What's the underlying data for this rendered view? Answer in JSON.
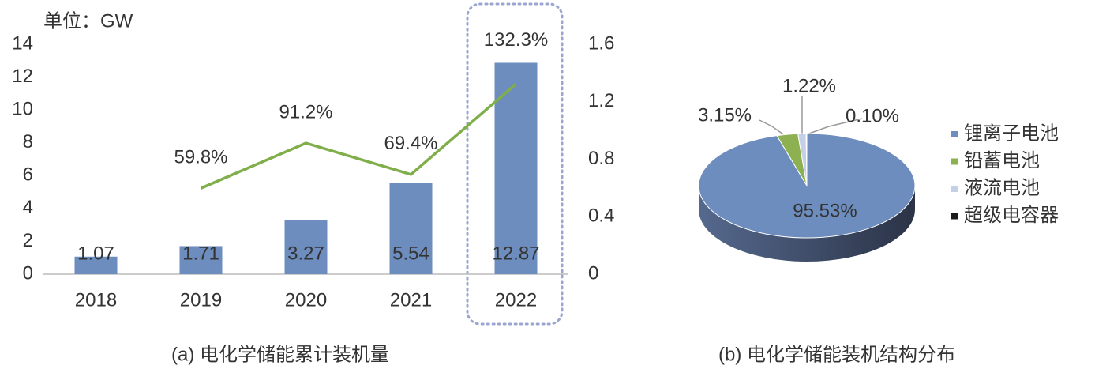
{
  "chart_data": [
    {
      "type": "bar",
      "unit_label": "单位：GW",
      "caption": "(a) 电化学储能累计装机量",
      "categories": [
        "2018",
        "2019",
        "2020",
        "2021",
        "2022"
      ],
      "series": [
        {
          "type": "bar",
          "color": "#6d8dbf",
          "values": [
            1.07,
            1.71,
            3.27,
            5.54,
            12.87
          ]
        },
        {
          "type": "line",
          "axis": "y2",
          "color": "#7fae4a",
          "values": [
            null,
            0.598,
            0.912,
            0.694,
            1.323
          ],
          "value_labels": [
            null,
            "59.8%",
            "91.2%",
            "69.4%",
            "132.3%"
          ]
        }
      ],
      "ylim": [
        0,
        14
      ],
      "yticks": [
        0,
        2,
        4,
        6,
        8,
        10,
        12,
        14
      ],
      "y2lim": [
        0,
        1.6
      ],
      "y2ticks": [
        0,
        0.4,
        0.8,
        1.2,
        1.6
      ],
      "grid": false
    },
    {
      "type": "pie",
      "caption": "(b) 电化学储能装机结构分布",
      "categories": [
        "锂离子电池",
        "铅蓄电池",
        "液流电池",
        "超级电容器"
      ],
      "values": [
        95.53,
        3.15,
        1.22,
        0.1
      ],
      "value_labels": [
        "95.53%",
        "3.15%",
        "1.22%",
        "0.10%"
      ],
      "colors": [
        "#6d8dbf",
        "#8db050",
        "#c5d0e8",
        "#1a1a1a"
      ],
      "legend": "right"
    }
  ]
}
